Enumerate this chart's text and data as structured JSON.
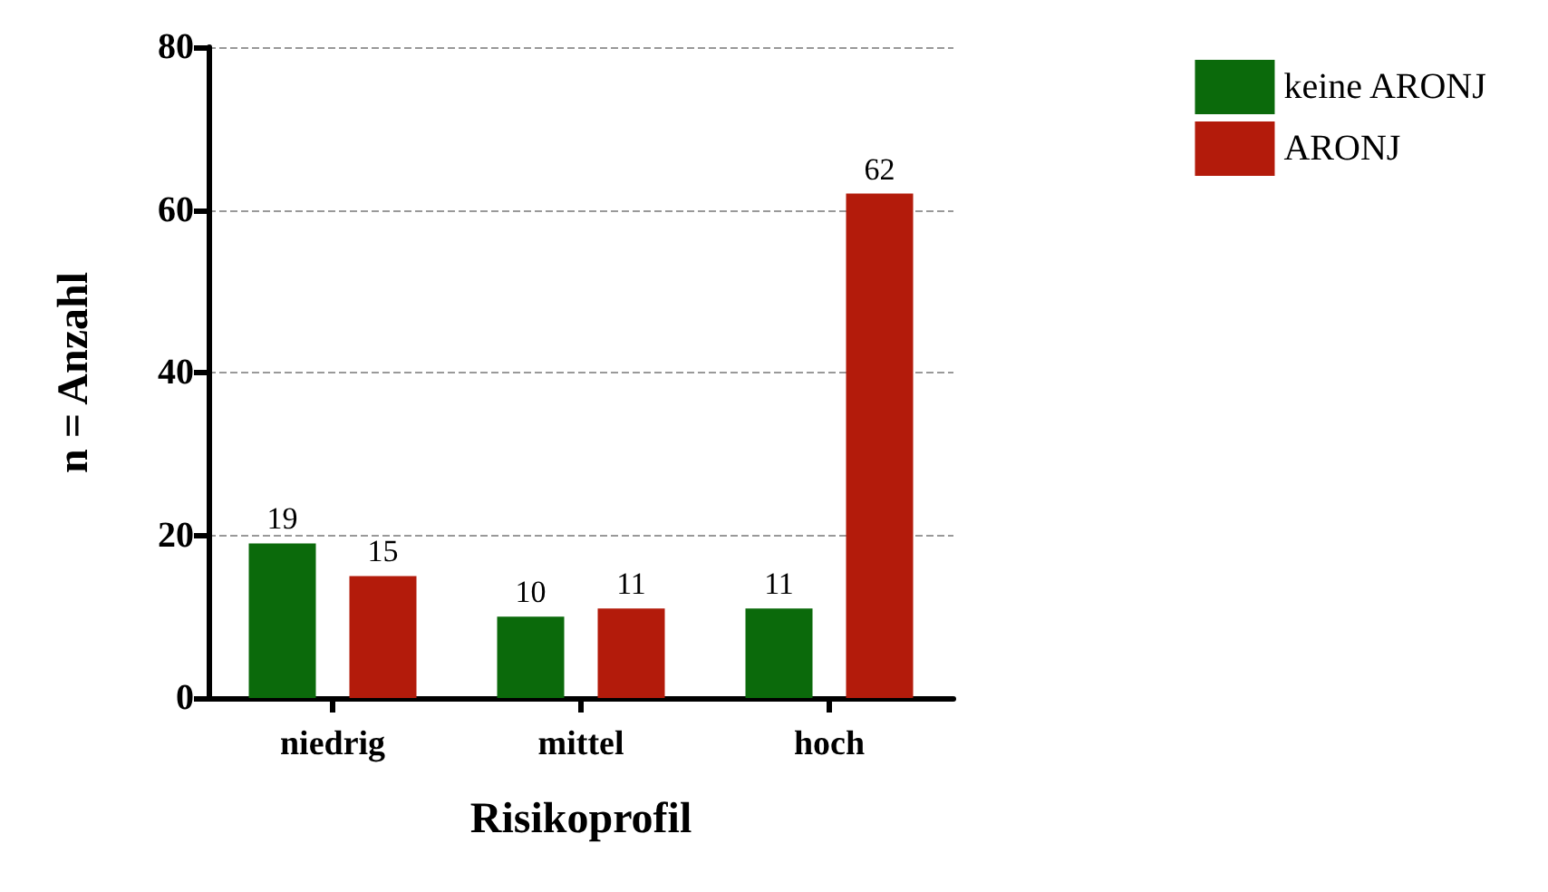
{
  "chart_data": {
    "type": "bar",
    "xlabel": "Risikoprofil",
    "ylabel": "n = Anzahl",
    "categories": [
      "niedrig",
      "mittel",
      "hoch"
    ],
    "series": [
      {
        "name": "keine ARONJ",
        "color": "#0b6a0b",
        "values": [
          19,
          10,
          11
        ]
      },
      {
        "name": "ARONJ",
        "color": "#b31b0b",
        "values": [
          15,
          11,
          62
        ]
      }
    ],
    "ylim": [
      0,
      80
    ],
    "yticks": [
      0,
      20,
      40,
      60,
      80
    ],
    "grid": "y",
    "legend": "top right",
    "data_labels": true
  }
}
